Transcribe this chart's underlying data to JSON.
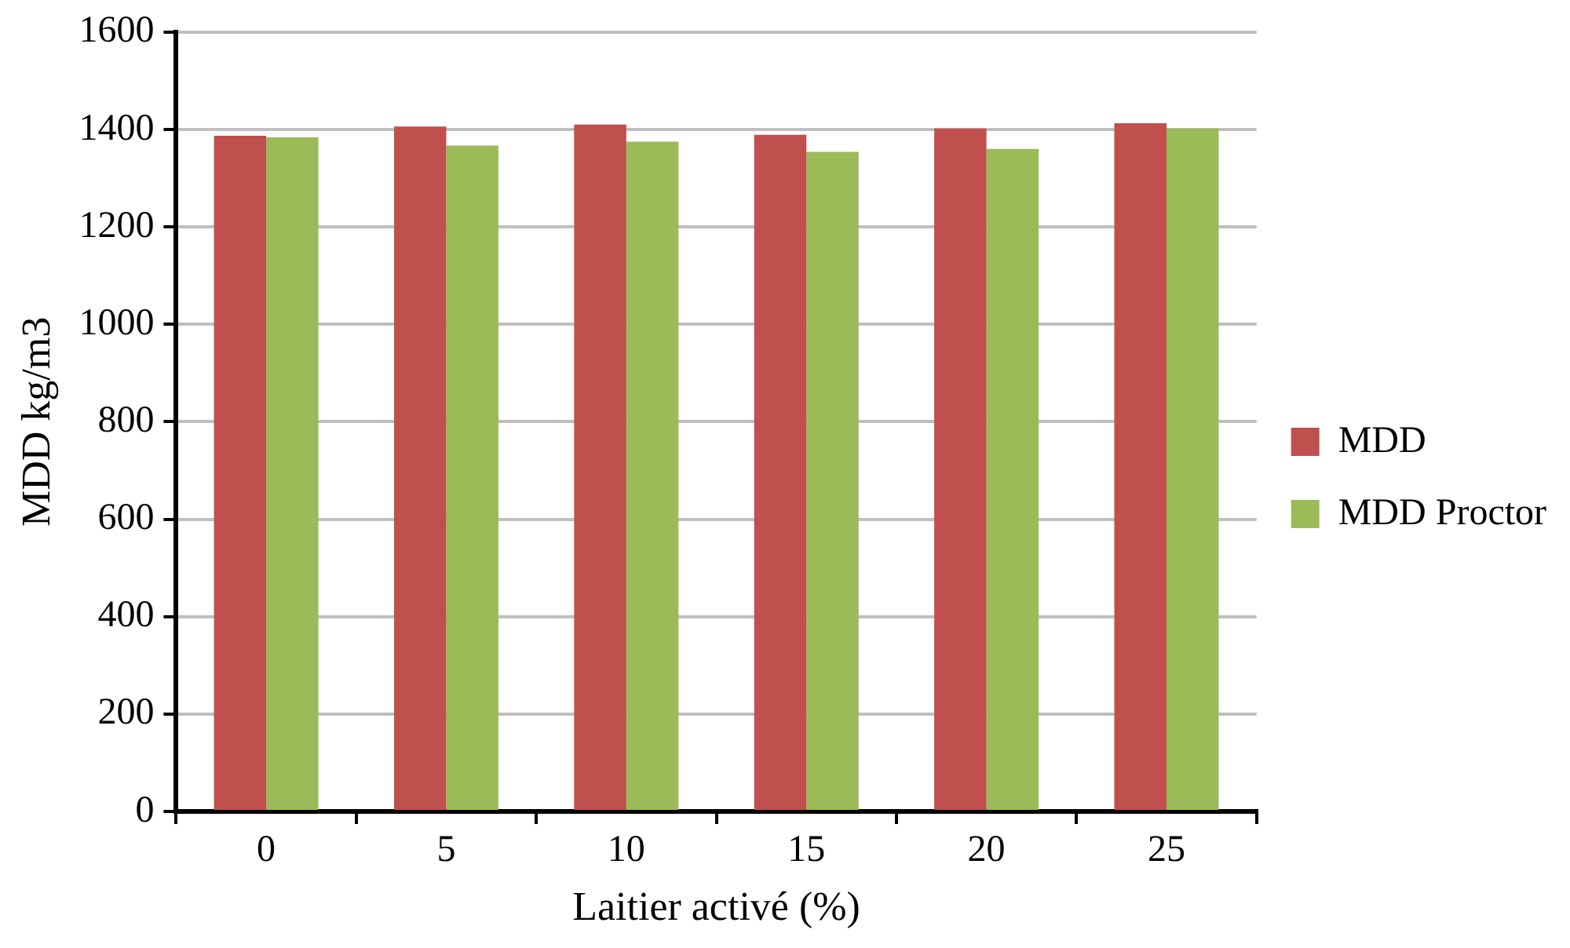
{
  "chart_data": {
    "type": "bar",
    "xlabel": "Laitier activé (%)",
    "ylabel": "MDD kg/m3",
    "categories": [
      "0",
      "5",
      "10",
      "15",
      "20",
      "25"
    ],
    "series": [
      {
        "name": "MDD",
        "color": "#c0504d",
        "values": [
          1387,
          1406,
          1410,
          1389,
          1402,
          1413
        ]
      },
      {
        "name": "MDD Proctor",
        "color": "#9bbb59",
        "values": [
          1384,
          1367,
          1375,
          1354,
          1360,
          1402
        ]
      }
    ],
    "ylim": [
      0,
      1600
    ],
    "yticks": [
      0,
      200,
      400,
      600,
      800,
      1000,
      1200,
      1400,
      1600
    ],
    "grid": "y",
    "legend": "right"
  }
}
